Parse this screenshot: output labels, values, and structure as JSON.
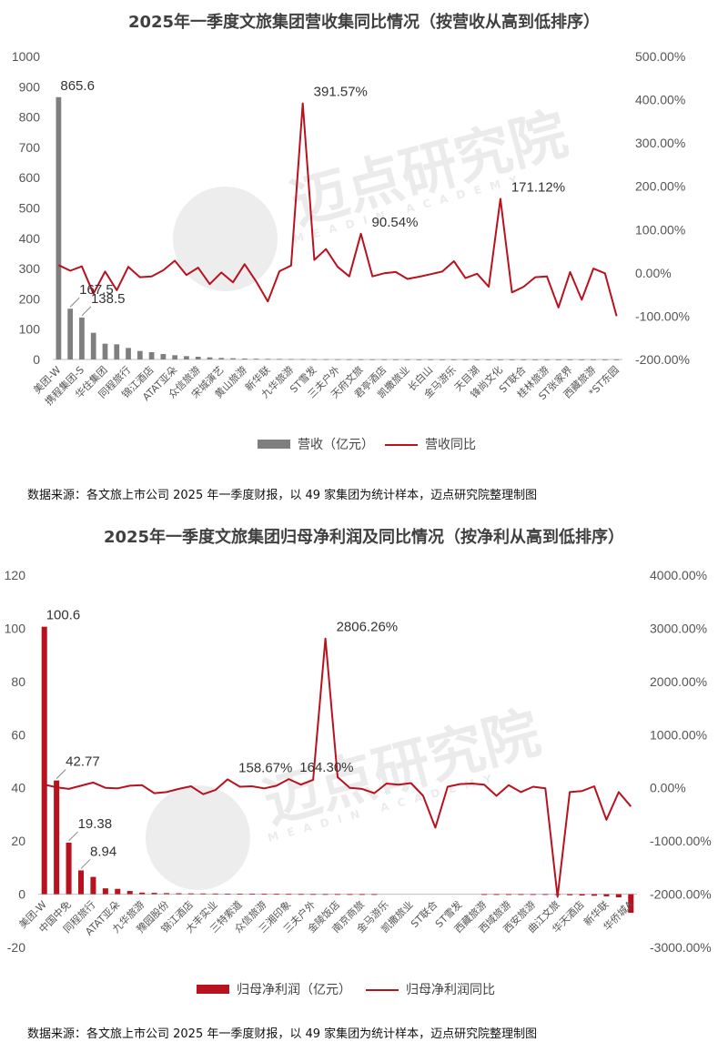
{
  "watermark": {
    "text": "迈点研究院",
    "sub": "MEADIN ACADEMY"
  },
  "chart_data": [
    {
      "type": "bar+line",
      "title": "2025年一季度文旅集团营收集同比情况（按营收从高到低排序）",
      "source": "数据来源：各文旅上市公司 2025 年一季度财报，以 49 家集团为统计样本，迈点研究院整理制图",
      "ylim": [
        0,
        1000
      ],
      "yticks": [
        "1000",
        "900",
        "800",
        "700",
        "600",
        "500",
        "400",
        "300",
        "200",
        "100",
        "0"
      ],
      "y2lim": [
        -200,
        500
      ],
      "y2ticks": [
        "500.00%",
        "400.00%",
        "300.00%",
        "200.00%",
        "100.00%",
        "0.00%",
        "-100.00%",
        "-200.00%"
      ],
      "bar_color": "#7f7f7f",
      "line_color": "#b8121e",
      "legend": {
        "bar": "营收（亿元）",
        "line": "营收同比"
      },
      "categories": [
        "美团-W",
        "携程集团-S",
        "华住集团",
        "同程旅行",
        "锦江酒店",
        "ATAT亚朵",
        "众信旅游",
        "宋城演艺",
        "黄山旅游",
        "新华联",
        "九华旅游",
        "ST雪发",
        "三夫户外",
        "天府文旅",
        "君亭酒店",
        "凯撒旅业",
        "长白山",
        "金马游乐",
        "天目湖",
        "锋尚文化",
        "ST联合",
        "桂林旅游",
        "ST张家界",
        "西藏旅游",
        "*ST东园"
      ],
      "n": 49,
      "labeled_categories": [
        0,
        2,
        4,
        6,
        8,
        10,
        12,
        14,
        16,
        18,
        20,
        22,
        24,
        26,
        28,
        30,
        32,
        34,
        36,
        38,
        40,
        42,
        44,
        46,
        48
      ],
      "revenue": [
        865.6,
        167.5,
        138.5,
        88,
        52,
        50,
        38,
        28,
        24,
        18,
        14,
        11,
        9,
        7,
        5,
        4,
        3,
        2.5,
        2,
        1.8,
        1.5,
        1.2,
        1,
        0.8,
        0.7,
        0.6,
        0.5,
        0.5,
        0.4,
        0.4,
        0.3,
        0.3,
        0.3,
        0.2,
        0.2,
        0.2,
        0.2,
        0.1,
        0.1,
        0.1,
        0.1,
        0.1,
        0.1,
        0.1,
        0.1,
        0.1,
        0.1,
        0.1,
        0.1
      ],
      "growth": [
        18,
        5,
        15,
        -48,
        3,
        -40,
        14,
        -10,
        -8,
        6,
        28,
        -5,
        12,
        -26,
        1,
        -22,
        20,
        -20,
        -66,
        4,
        17,
        391.57,
        30,
        55,
        14,
        -8,
        90.54,
        -8,
        -1,
        2,
        -14,
        -9,
        -3,
        3,
        27,
        -12,
        -2,
        -32,
        171.12,
        -45,
        -32,
        -10,
        -8,
        -80,
        2,
        -62,
        10,
        -1,
        -100
      ],
      "annotations": [
        {
          "index": 0,
          "series": "bar",
          "text": "865.6"
        },
        {
          "index": 1,
          "series": "bar",
          "text": "167.5"
        },
        {
          "index": 2,
          "series": "bar",
          "text": "138.5"
        },
        {
          "index": 21,
          "series": "line",
          "text": "391.57%"
        },
        {
          "index": 26,
          "series": "line",
          "text": "90.54%"
        },
        {
          "index": 38,
          "series": "line",
          "text": "171.12%"
        }
      ]
    },
    {
      "type": "bar+line",
      "title": "2025年一季度文旅集团归母净利润及同比情况（按净利从高到低排序）",
      "source": "数据来源：各文旅上市公司 2025 年一季度财报，以 49 家集团为统计样本，迈点研究院整理制图",
      "ylim": [
        -20,
        120
      ],
      "yticks": [
        "120",
        "100",
        "80",
        "60",
        "40",
        "20",
        "0",
        "-20"
      ],
      "y2lim": [
        -3000,
        4000
      ],
      "y2ticks": [
        "4000.00%",
        "3000.00%",
        "2000.00%",
        "1000.00%",
        "0.00%",
        "-1000.00%",
        "-2000.00%",
        "-3000.00%"
      ],
      "bar_color": "#b8121e",
      "line_color": "#b8121e",
      "legend": {
        "bar": "归母净利润（亿元）",
        "line": "归母净利润同比"
      },
      "categories": [
        "美团-W",
        "中国中免",
        "同程旅行",
        "ATAT亚朵",
        "九华旅游",
        "豫园股份",
        "锦江酒店",
        "大丰实业",
        "三特索道",
        "众信旅游",
        "三湘印象",
        "三夫户外",
        "金陵饭店",
        "南京商旅",
        "金马游乐",
        "凯撒旅业",
        "ST联合",
        "ST雪发",
        "西藏旅游",
        "西域旅游",
        "西安旅游",
        "曲江文旅",
        "华天酒店",
        "新华联",
        "华侨城A"
      ],
      "n": 49,
      "labeled_categories": [
        0,
        2,
        4,
        6,
        8,
        10,
        12,
        14,
        16,
        18,
        20,
        22,
        24,
        26,
        28,
        30,
        32,
        34,
        36,
        38,
        40,
        42,
        44,
        46,
        48
      ],
      "profit": [
        100.6,
        42.77,
        19.38,
        8.94,
        6.5,
        2.2,
        2.0,
        1.2,
        0.6,
        0.5,
        0.4,
        0.35,
        0.3,
        0.28,
        0.25,
        0.2,
        0.18,
        0.15,
        0.12,
        0.1,
        0.08,
        0.06,
        0.05,
        0.04,
        0.03,
        0.02,
        0.01,
        0.01,
        0,
        0,
        0,
        0,
        0,
        0,
        0,
        0,
        -0.05,
        -0.08,
        -0.1,
        -0.15,
        -0.2,
        -0.25,
        -0.3,
        -0.4,
        -0.5,
        -0.6,
        -0.8,
        -1.2,
        -7
      ],
      "growth": [
        60,
        10,
        -20,
        40,
        100,
        0,
        -10,
        40,
        50,
        -100,
        -80,
        -20,
        30,
        -120,
        -40,
        158.67,
        20,
        30,
        -10,
        40,
        164.3,
        60,
        150,
        2806.26,
        200,
        0,
        -20,
        -100,
        80,
        60,
        90,
        -150,
        -750,
        20,
        70,
        80,
        60,
        -150,
        50,
        -80,
        20,
        -10,
        -2050,
        -80,
        -60,
        30,
        -600,
        -80,
        -350
      ],
      "annotations": [
        {
          "index": 0,
          "series": "bar",
          "text": "100.6"
        },
        {
          "index": 1,
          "series": "bar",
          "text": "42.77"
        },
        {
          "index": 2,
          "series": "bar",
          "text": "19.38"
        },
        {
          "index": 3,
          "series": "bar",
          "text": "8.94"
        },
        {
          "index": 15,
          "series": "line",
          "text": "158.67%"
        },
        {
          "index": 20,
          "series": "line",
          "text": "164.30%"
        },
        {
          "index": 23,
          "series": "line",
          "text": "2806.26%"
        }
      ]
    }
  ]
}
